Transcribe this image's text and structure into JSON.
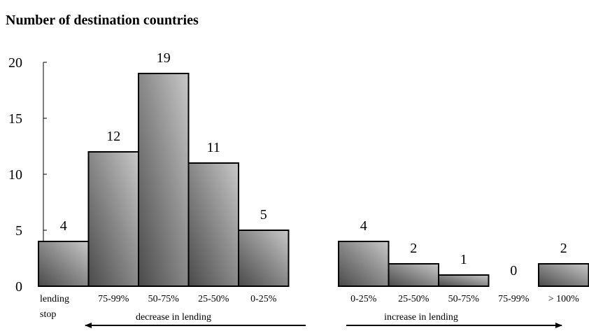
{
  "chart_data": {
    "type": "bar",
    "title": "Number of destination countries",
    "xlabel": "",
    "ylabel": "",
    "ylim": [
      0,
      20
    ],
    "yticks": [
      "0",
      "5",
      "10",
      "15",
      "20"
    ],
    "grid": false,
    "categories": [
      "lending stop",
      "75-99%",
      "50-75%",
      "25-50%",
      "0-25%",
      "",
      "0-25%",
      "25-50%",
      "50-75%",
      "75-99%",
      "> 100%"
    ],
    "values": [
      4,
      12,
      19,
      11,
      5,
      null,
      4,
      2,
      1,
      0,
      2
    ],
    "data_labels": [
      "4",
      "12",
      "19",
      "11",
      "5",
      "",
      "4",
      "2",
      "1",
      "0",
      "2"
    ],
    "category_display": [
      [
        "lending",
        "stop"
      ],
      [
        "75-99%"
      ],
      [
        "50-75%"
      ],
      [
        "25-50%"
      ],
      [
        "0-25%"
      ],
      [],
      [
        "0-25%"
      ],
      [
        "25-50%"
      ],
      [
        "50-75%"
      ],
      [
        "75-99%"
      ],
      [
        "> 100%"
      ]
    ],
    "group_labels": [
      "decrease in lending",
      "increase in lending"
    ]
  }
}
